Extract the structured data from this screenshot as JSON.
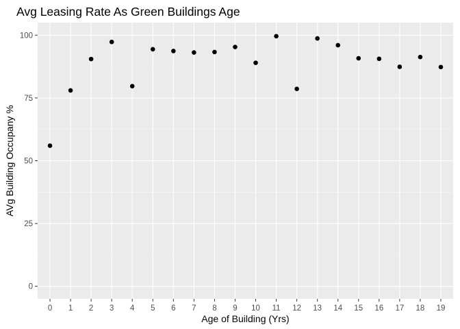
{
  "chart_data": {
    "type": "scatter",
    "title": "Avg Leasing Rate As Green Buildings Age",
    "xlabel": "Age of Building (Yrs)",
    "ylabel": "AVg Building Occupany %",
    "x": [
      0,
      1,
      2,
      3,
      4,
      5,
      6,
      7,
      8,
      9,
      10,
      11,
      12,
      13,
      14,
      15,
      16,
      17,
      18,
      19
    ],
    "y": [
      56,
      78,
      90.5,
      97.3,
      79.7,
      94.4,
      93.7,
      93.1,
      93.3,
      95.3,
      89,
      99.6,
      78.6,
      98.7,
      96,
      90.8,
      90.6,
      87.4,
      91.3,
      87.3
    ],
    "x_ticks": [
      "0",
      "1",
      "2",
      "3",
      "4",
      "5",
      "6",
      "7",
      "8",
      "9",
      "10",
      "11",
      "12",
      "13",
      "14",
      "15",
      "16",
      "17",
      "18",
      "19"
    ],
    "y_ticks": [
      0,
      25,
      50,
      75,
      100
    ],
    "xlim": [
      -0.6,
      19.6
    ],
    "ylim": [
      -5,
      105
    ],
    "grid": true,
    "legend": "none",
    "colors": {
      "panel_background": "#ebebeb",
      "grid_major": "#ffffff",
      "grid_minor": "#f5f5f5",
      "point": "#000000",
      "tick_text": "#4d4d4d",
      "tick_mark": "#333333"
    }
  }
}
